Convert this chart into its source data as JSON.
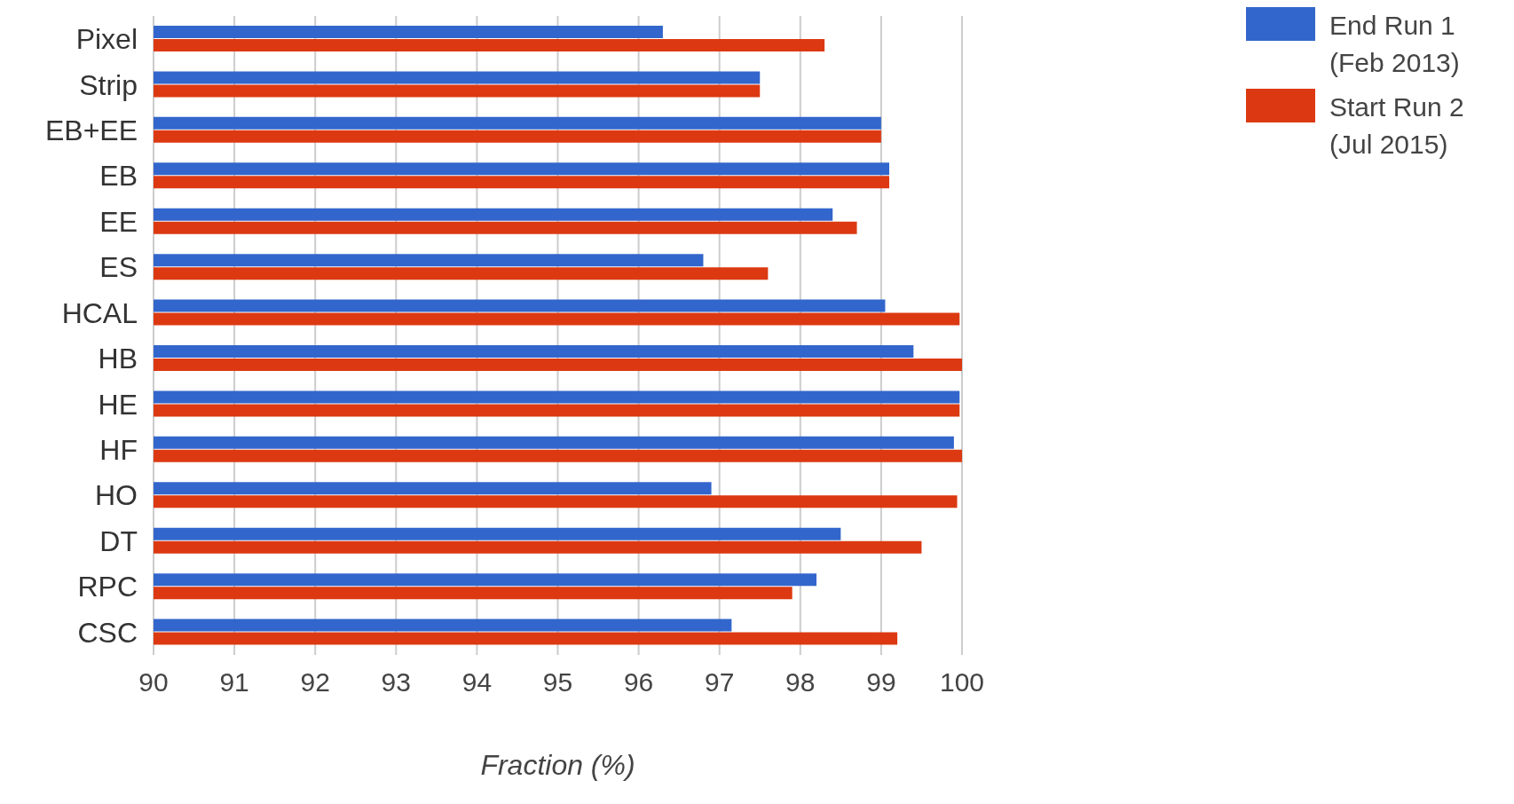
{
  "chart_data": {
    "type": "bar",
    "orientation": "horizontal",
    "xlabel": "Fraction (%)",
    "categories": [
      "Pixel",
      "Strip",
      "EB+EE",
      "EB",
      "EE",
      "ES",
      "HCAL",
      "HB",
      "HE",
      "HF",
      "HO",
      "DT",
      "RPC",
      "CSC"
    ],
    "series": [
      {
        "name": "End Run 1 (Feb 2013)",
        "color": "#3366cc",
        "values": [
          96.3,
          97.5,
          99.0,
          99.1,
          98.4,
          96.8,
          99.05,
          99.4,
          99.97,
          99.9,
          96.9,
          98.5,
          98.2,
          97.15
        ]
      },
      {
        "name": "Start Run 2 (Jul 2015)",
        "color": "#dc3912",
        "values": [
          98.3,
          97.5,
          99.0,
          99.1,
          98.7,
          97.6,
          99.97,
          100,
          99.97,
          100,
          99.94,
          99.5,
          97.9,
          99.2
        ]
      }
    ],
    "xlim": [
      90,
      100
    ],
    "xticks": [
      90,
      91,
      92,
      93,
      94,
      95,
      96,
      97,
      98,
      99,
      100
    ],
    "grid": "x",
    "legend": "top right"
  }
}
